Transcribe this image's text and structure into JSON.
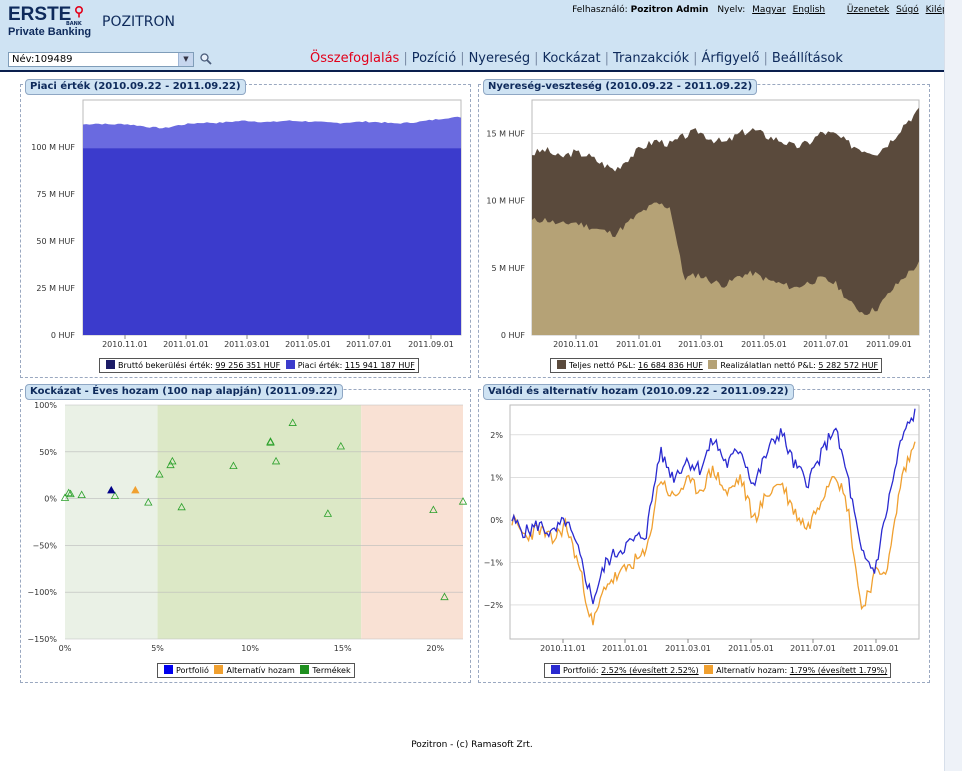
{
  "header": {
    "logo_brand": "ERSTE",
    "logo_bank": "BANK",
    "logo_sub": "Private Banking",
    "app_title": "POZITRON",
    "user_label": "Felhasználó:",
    "user_name": "Pozitron Admin",
    "lang_label": "Nyelv:",
    "lang_hu": "Magyar",
    "lang_en": "English",
    "messages": "Üzenetek",
    "help": "Súgó",
    "logout": "Kilépés",
    "account_value": "Név:109489"
  },
  "nav": {
    "items": [
      "Összefoglalás",
      "Pozíció",
      "Nyereség",
      "Kockázat",
      "Tranzakciók",
      "Árfigyelő",
      "Beállítások"
    ],
    "active_index": 0
  },
  "colors": {
    "market": "#3b3bcc",
    "market_top": "#6a6ae0",
    "cost": "#1b1b66",
    "pl_total": "#5a4a3c",
    "pl_unreal": "#b5a276",
    "portfolio": "#2a2ad0",
    "alternative": "#f0a030",
    "products": "#2aa02a"
  },
  "panels": {
    "market_value": {
      "title": "Piaci érték (2010.09.22 - 2011.09.22)",
      "legend_cost_label": "Bruttó bekerülési érték:",
      "legend_cost_value": "99 256 351 HUF",
      "legend_market_label": "Piaci érték:",
      "legend_market_value": "115 941 187 HUF"
    },
    "pnl": {
      "title": "Nyereség-veszteség (2010.09.22 - 2011.09.22)",
      "legend_total_label": "Teljes nettó P&L:",
      "legend_total_value": "16 684 836 HUF",
      "legend_unreal_label": "Realizálatlan nettó P&L:",
      "legend_unreal_value": "5 282 572 HUF"
    },
    "risk": {
      "title": "Kockázat - Éves hozam (100 nap alapján) (2011.09.22)",
      "legend_portfolio": "Portfolió",
      "legend_alternative": "Alternatív hozam",
      "legend_products": "Termékek"
    },
    "returns": {
      "title": "Valódi és alternatív hozam (2010.09.22 - 2011.09.22)",
      "legend_portfolio_label": "Portfolió:",
      "legend_portfolio_value": "2.52% (évesített 2.52%)",
      "legend_alt_label": "Alternatív hozam:",
      "legend_alt_value": "1.79% (évesített 1.79%)"
    }
  },
  "chart_data": [
    {
      "type": "area",
      "title": "Piaci érték (2010.09.22 - 2011.09.22)",
      "x_ticks": [
        "2010.11.01",
        "2011.01.01",
        "2011.03.01",
        "2011.05.01",
        "2011.07.01",
        "2011.09.01"
      ],
      "y_ticks": [
        "0 HUF",
        "25 M HUF",
        "50 M HUF",
        "75 M HUF",
        "100 M HUF"
      ],
      "ylim": [
        0,
        125
      ],
      "series": [
        {
          "name": "Bruttó bekerülési érték",
          "values": [
            99.3,
            99.3
          ]
        },
        {
          "name": "Piaci érték",
          "values": [
            112,
            112.5,
            112,
            112.3,
            111.5,
            110.5,
            110,
            111.5,
            112.5,
            113,
            112.8,
            113.5,
            114,
            113.5,
            113.2,
            114,
            113.8,
            113.5,
            113,
            112.8,
            113.2,
            113.5,
            113.2,
            112.5,
            112.8,
            113.5,
            114.5,
            115.5,
            115.9
          ]
        }
      ]
    },
    {
      "type": "area",
      "title": "Nyereség-veszteség (2010.09.22 - 2011.09.22)",
      "x_ticks": [
        "2010.11.01",
        "2011.01.01",
        "2011.03.01",
        "2011.05.01",
        "2011.07.01",
        "2011.09.01"
      ],
      "y_ticks": [
        "0 HUF",
        "5 M HUF",
        "10 M HUF",
        "15 M HUF"
      ],
      "ylim": [
        0,
        17.5
      ],
      "series": [
        {
          "name": "Teljes nettó P&L",
          "values": [
            13.5,
            13.8,
            13.2,
            13.6,
            13.4,
            12.8,
            12.3,
            13.2,
            14.0,
            14.5,
            14.2,
            14.8,
            15.2,
            14.6,
            14.3,
            15.0,
            15.3,
            14.8,
            14.5,
            14.0,
            14.3,
            15.1,
            14.9,
            14.2,
            13.8,
            13.6,
            14.5,
            15.8,
            16.7
          ]
        },
        {
          "name": "Realizálatlan nettó P&L",
          "values": [
            8.5,
            8.6,
            8.2,
            8.4,
            8.1,
            7.8,
            7.5,
            8.4,
            9.2,
            9.8,
            9.5,
            4.2,
            4.5,
            4.0,
            3.7,
            4.4,
            4.6,
            4.1,
            3.8,
            3.5,
            3.9,
            4.2,
            3.8,
            2.4,
            1.6,
            2.0,
            3.3,
            4.4,
            5.3
          ]
        }
      ]
    },
    {
      "type": "scatter",
      "title": "Kockázat - Éves hozam (100 nap alapján) (2011.09.22)",
      "x_ticks": [
        "0%",
        "5%",
        "10%",
        "15%",
        "20%"
      ],
      "y_ticks": [
        "100%",
        "50%",
        "0%",
        "−50%",
        "−100%",
        "−150%"
      ],
      "xlim": [
        0,
        21.5
      ],
      "ylim": [
        -150,
        100
      ],
      "series": [
        {
          "name": "Portfolió",
          "points": [
            [
              2.5,
              9
            ]
          ]
        },
        {
          "name": "Alternatív hozam",
          "points": [
            [
              3.8,
              9
            ]
          ]
        },
        {
          "name": "Termékek",
          "points": [
            [
              0,
              1
            ],
            [
              0.2,
              6
            ],
            [
              0.3,
              5
            ],
            [
              0.9,
              4
            ],
            [
              2.7,
              3
            ],
            [
              4.5,
              -4
            ],
            [
              5.1,
              26
            ],
            [
              5.7,
              36
            ],
            [
              5.8,
              40
            ],
            [
              6.3,
              -9
            ],
            [
              9.1,
              35
            ],
            [
              11.1,
              60
            ],
            [
              11.1,
              61
            ],
            [
              11.4,
              40
            ],
            [
              12.3,
              81
            ],
            [
              14.2,
              -16
            ],
            [
              14.9,
              56
            ],
            [
              19.9,
              -12
            ],
            [
              20.5,
              -105
            ],
            [
              21.5,
              -3
            ]
          ]
        }
      ]
    },
    {
      "type": "line",
      "title": "Valódi és alternatív hozam (2010.09.22 - 2011.09.22)",
      "x_ticks": [
        "2010.11.01",
        "2011.01.01",
        "2011.03.01",
        "2011.05.01",
        "2011.07.01",
        "2011.09.01"
      ],
      "y_ticks": [
        "2%",
        "1%",
        "0%",
        "−1%",
        "−2%"
      ],
      "ylim": [
        -2.8,
        2.7
      ],
      "series": [
        {
          "name": "Portfolió",
          "values": [
            0.0,
            -0.3,
            -0.1,
            -0.35,
            0.0,
            -0.8,
            -1.9,
            -1.0,
            -0.7,
            -0.5,
            -0.3,
            1.6,
            1.0,
            1.4,
            1.2,
            1.9,
            1.3,
            1.7,
            0.8,
            1.6,
            2.1,
            1.3,
            0.9,
            1.5,
            2.2,
            1.0,
            -0.8,
            -1.2,
            0.4,
            1.9,
            2.52
          ]
        },
        {
          "name": "Alternatív hozam",
          "values": [
            0.0,
            -0.4,
            -0.2,
            -0.5,
            -0.1,
            -1.1,
            -2.5,
            -1.5,
            -1.3,
            -1.0,
            -0.8,
            1.0,
            0.5,
            0.9,
            0.7,
            1.2,
            0.6,
            1.0,
            0.0,
            0.6,
            0.9,
            0.2,
            -0.2,
            0.5,
            1.2,
            0.3,
            -2.1,
            -1.3,
            -1.1,
            1.0,
            1.79
          ]
        }
      ]
    }
  ],
  "footer": "Pozitron - (c) Ramasoft Zrt."
}
